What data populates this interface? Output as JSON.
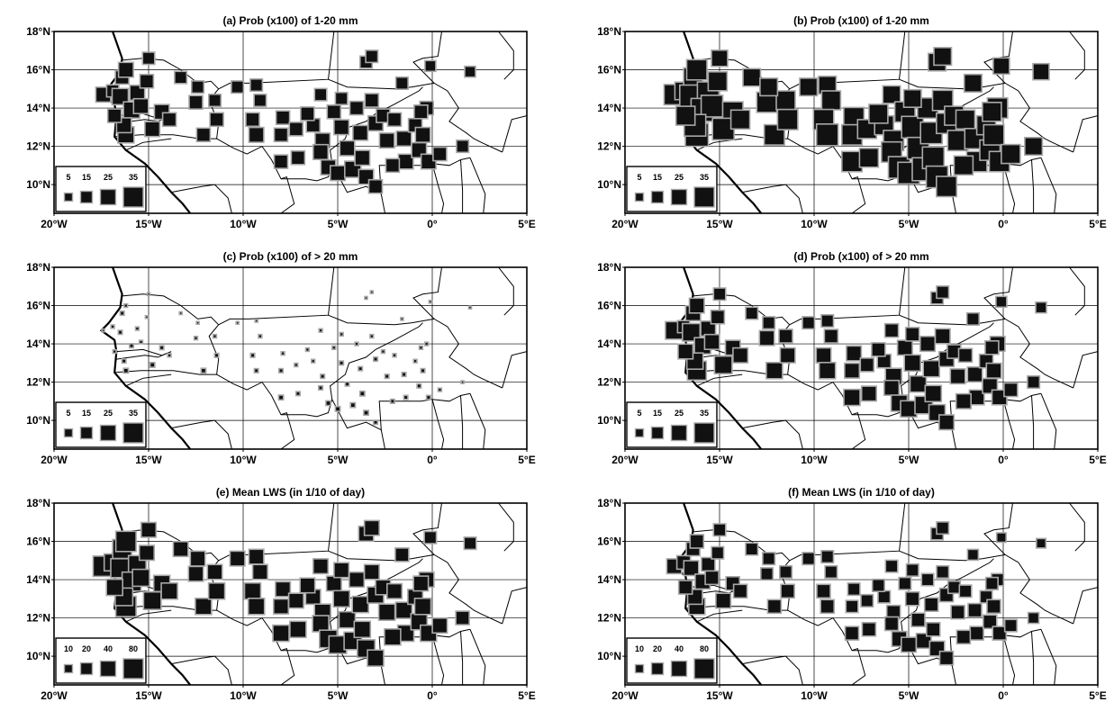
{
  "figure": {
    "panels": [
      {
        "id": "a",
        "title": "(a) Prob (x100) of 1-20 mm",
        "legend": [
          "5",
          "15",
          "25",
          "35"
        ],
        "variable": "prob_1_20mm"
      },
      {
        "id": "b",
        "title": "(b) Prob (x100) of 1-20 mm",
        "legend": [
          "5",
          "15",
          "25",
          "35"
        ],
        "variable": "prob_1_20mm_alt"
      },
      {
        "id": "c",
        "title": "(c) Prob (x100) of > 20 mm",
        "legend": [
          "5",
          "15",
          "25",
          "35"
        ],
        "variable": "prob_gt20mm"
      },
      {
        "id": "d",
        "title": "(d) Prob (x100) of > 20 mm",
        "legend": [
          "5",
          "15",
          "25",
          "35"
        ],
        "variable": "prob_gt20mm_alt"
      },
      {
        "id": "e",
        "title": "(e) Mean LWS (in 1/10 of day)",
        "legend": [
          "10",
          "20",
          "40",
          "80"
        ],
        "variable": "lws"
      },
      {
        "id": "f",
        "title": "(f) Mean LWS (in 1/10 of day)",
        "legend": [
          "10",
          "20",
          "40",
          "80"
        ],
        "variable": "lws_alt"
      }
    ],
    "lon_ticks": [
      "20°W",
      "15°W",
      "10°W",
      "5°W",
      "0°",
      "5°E"
    ],
    "lat_ticks": [
      "18°N",
      "16°N",
      "14°N",
      "12°N",
      "10°N"
    ],
    "map_extent": {
      "lon": [
        -20,
        5
      ],
      "lat": [
        8.5,
        18
      ]
    },
    "colors": {
      "marker_fill": "#111111",
      "marker_edge": "#a8a8a8",
      "lines": "#000000",
      "background": "#ffffff"
    }
  },
  "stations": [
    {
      "lon": -17.4,
      "lat": 14.7,
      "a": 22,
      "b": 30,
      "c": 4,
      "d": 26,
      "e": 30,
      "f": 22
    },
    {
      "lon": -16.9,
      "lat": 14.9,
      "a": 18,
      "b": 26,
      "c": 5,
      "d": 18,
      "e": 25,
      "f": 20
    },
    {
      "lon": -16.4,
      "lat": 15.6,
      "a": 20,
      "b": 28,
      "c": 6,
      "d": 22,
      "e": 28,
      "f": 20
    },
    {
      "lon": -16.2,
      "lat": 16.0,
      "a": 22,
      "b": 30,
      "c": 5,
      "d": 22,
      "e": 30,
      "f": 20
    },
    {
      "lon": -16.5,
      "lat": 14.6,
      "a": 24,
      "b": 34,
      "c": 6,
      "d": 26,
      "e": 28,
      "f": 22
    },
    {
      "lon": -15.6,
      "lat": 14.8,
      "a": 22,
      "b": 32,
      "c": 5,
      "d": 22,
      "e": 26,
      "f": 20
    },
    {
      "lon": -15.9,
      "lat": 13.9,
      "a": 24,
      "b": 34,
      "c": 6,
      "d": 24,
      "e": 28,
      "f": 22
    },
    {
      "lon": -15.4,
      "lat": 14.1,
      "a": 22,
      "b": 32,
      "c": 5,
      "d": 22,
      "e": 25,
      "f": 20
    },
    {
      "lon": -16.2,
      "lat": 12.6,
      "a": 24,
      "b": 34,
      "c": 7,
      "d": 28,
      "e": 30,
      "f": 24
    },
    {
      "lon": -16.3,
      "lat": 13.1,
      "a": 22,
      "b": 32,
      "c": 6,
      "d": 24,
      "e": 26,
      "f": 22
    },
    {
      "lon": -15.0,
      "lat": 16.6,
      "a": 18,
      "b": 24,
      "c": 3,
      "d": 18,
      "e": 22,
      "f": 18
    },
    {
      "lon": -15.1,
      "lat": 15.4,
      "a": 20,
      "b": 28,
      "c": 4,
      "d": 20,
      "e": 22,
      "f": 18
    },
    {
      "lon": -14.3,
      "lat": 13.8,
      "a": 22,
      "b": 30,
      "c": 6,
      "d": 22,
      "e": 24,
      "f": 20
    },
    {
      "lon": -14.8,
      "lat": 12.9,
      "a": 22,
      "b": 32,
      "c": 7,
      "d": 26,
      "e": 26,
      "f": 22
    },
    {
      "lon": -13.3,
      "lat": 15.6,
      "a": 18,
      "b": 26,
      "c": 4,
      "d": 18,
      "e": 22,
      "f": 18
    },
    {
      "lon": -12.5,
      "lat": 14.3,
      "a": 20,
      "b": 30,
      "c": 5,
      "d": 22,
      "e": 22,
      "f": 18
    },
    {
      "lon": -12.1,
      "lat": 12.6,
      "a": 20,
      "b": 30,
      "c": 7,
      "d": 24,
      "e": 24,
      "f": 20
    },
    {
      "lon": -11.5,
      "lat": 14.4,
      "a": 18,
      "b": 28,
      "c": 5,
      "d": 20,
      "e": 22,
      "f": 18
    },
    {
      "lon": -11.4,
      "lat": 13.4,
      "a": 20,
      "b": 30,
      "c": 6,
      "d": 22,
      "e": 24,
      "f": 20
    },
    {
      "lon": -10.3,
      "lat": 15.1,
      "a": 18,
      "b": 26,
      "c": 4,
      "d": 18,
      "e": 22,
      "f": 18
    },
    {
      "lon": -9.3,
      "lat": 15.2,
      "a": 18,
      "b": 26,
      "c": 4,
      "d": 18,
      "e": 22,
      "f": 18
    },
    {
      "lon": -9.1,
      "lat": 14.4,
      "a": 18,
      "b": 28,
      "c": 5,
      "d": 20,
      "e": 22,
      "f": 18
    },
    {
      "lon": -9.5,
      "lat": 13.4,
      "a": 20,
      "b": 30,
      "c": 6,
      "d": 22,
      "e": 24,
      "f": 20
    },
    {
      "lon": -9.3,
      "lat": 12.6,
      "a": 22,
      "b": 32,
      "c": 6,
      "d": 24,
      "e": 24,
      "f": 20
    },
    {
      "lon": -7.9,
      "lat": 13.5,
      "a": 20,
      "b": 30,
      "c": 5,
      "d": 22,
      "e": 22,
      "f": 18
    },
    {
      "lon": -8.0,
      "lat": 12.6,
      "a": 20,
      "b": 30,
      "c": 6,
      "d": 22,
      "e": 22,
      "f": 18
    },
    {
      "lon": -7.2,
      "lat": 12.9,
      "a": 20,
      "b": 28,
      "c": 5,
      "d": 20,
      "e": 22,
      "f": 18
    },
    {
      "lon": -8.0,
      "lat": 11.2,
      "a": 20,
      "b": 30,
      "c": 7,
      "d": 24,
      "e": 24,
      "f": 20
    },
    {
      "lon": -7.1,
      "lat": 11.4,
      "a": 20,
      "b": 28,
      "c": 6,
      "d": 22,
      "e": 24,
      "f": 20
    },
    {
      "lon": -6.3,
      "lat": 13.1,
      "a": 20,
      "b": 28,
      "c": 5,
      "d": 20,
      "e": 22,
      "f": 18
    },
    {
      "lon": -5.9,
      "lat": 14.7,
      "a": 18,
      "b": 26,
      "c": 5,
      "d": 20,
      "e": 22,
      "f": 18
    },
    {
      "lon": -5.8,
      "lat": 12.3,
      "a": 22,
      "b": 30,
      "c": 6,
      "d": 24,
      "e": 24,
      "f": 20
    },
    {
      "lon": -5.9,
      "lat": 11.7,
      "a": 22,
      "b": 30,
      "c": 6,
      "d": 22,
      "e": 24,
      "f": 20
    },
    {
      "lon": -5.5,
      "lat": 10.9,
      "a": 22,
      "b": 32,
      "c": 7,
      "d": 24,
      "e": 26,
      "f": 22
    },
    {
      "lon": -5.0,
      "lat": 10.6,
      "a": 22,
      "b": 32,
      "c": 7,
      "d": 24,
      "e": 26,
      "f": 22
    },
    {
      "lon": -5.2,
      "lat": 13.8,
      "a": 20,
      "b": 30,
      "c": 5,
      "d": 22,
      "e": 22,
      "f": 18
    },
    {
      "lon": -4.8,
      "lat": 13.0,
      "a": 22,
      "b": 32,
      "c": 6,
      "d": 24,
      "e": 24,
      "f": 20
    },
    {
      "lon": -4.5,
      "lat": 11.9,
      "a": 22,
      "b": 32,
      "c": 6,
      "d": 24,
      "e": 24,
      "f": 20
    },
    {
      "lon": -4.2,
      "lat": 10.8,
      "a": 24,
      "b": 34,
      "c": 7,
      "d": 26,
      "e": 26,
      "f": 22
    },
    {
      "lon": -4.0,
      "lat": 14.0,
      "a": 20,
      "b": 30,
      "c": 5,
      "d": 22,
      "e": 22,
      "f": 18
    },
    {
      "lon": -3.8,
      "lat": 12.7,
      "a": 22,
      "b": 32,
      "c": 6,
      "d": 24,
      "e": 24,
      "f": 20
    },
    {
      "lon": -3.7,
      "lat": 11.4,
      "a": 22,
      "b": 32,
      "c": 7,
      "d": 24,
      "e": 24,
      "f": 20
    },
    {
      "lon": -3.5,
      "lat": 10.4,
      "a": 22,
      "b": 32,
      "c": 7,
      "d": 24,
      "e": 26,
      "f": 22
    },
    {
      "lon": -3.5,
      "lat": 16.4,
      "a": 18,
      "b": 26,
      "c": 3,
      "d": 18,
      "e": 22,
      "f": 18
    },
    {
      "lon": -3.2,
      "lat": 16.7,
      "a": 18,
      "b": 26,
      "c": 3,
      "d": 18,
      "e": 22,
      "f": 18
    },
    {
      "lon": -3.2,
      "lat": 14.4,
      "a": 20,
      "b": 30,
      "c": 5,
      "d": 22,
      "e": 22,
      "f": 18
    },
    {
      "lon": -3.0,
      "lat": 13.2,
      "a": 22,
      "b": 30,
      "c": 6,
      "d": 22,
      "e": 24,
      "f": 20
    },
    {
      "lon": -3.0,
      "lat": 9.9,
      "a": 20,
      "b": 30,
      "c": 6,
      "d": 22,
      "e": 24,
      "f": 20
    },
    {
      "lon": -2.6,
      "lat": 13.6,
      "a": 20,
      "b": 28,
      "c": 5,
      "d": 20,
      "e": 22,
      "f": 18
    },
    {
      "lon": -2.4,
      "lat": 12.3,
      "a": 22,
      "b": 30,
      "c": 6,
      "d": 22,
      "e": 24,
      "f": 20
    },
    {
      "lon": -2.0,
      "lat": 13.4,
      "a": 20,
      "b": 28,
      "c": 5,
      "d": 20,
      "e": 22,
      "f": 18
    },
    {
      "lon": -1.6,
      "lat": 15.3,
      "a": 18,
      "b": 26,
      "c": 4,
      "d": 18,
      "e": 20,
      "f": 16
    },
    {
      "lon": -1.5,
      "lat": 12.4,
      "a": 22,
      "b": 30,
      "c": 6,
      "d": 22,
      "e": 24,
      "f": 20
    },
    {
      "lon": -1.4,
      "lat": 11.2,
      "a": 22,
      "b": 30,
      "c": 6,
      "d": 22,
      "e": 24,
      "f": 20
    },
    {
      "lon": -0.9,
      "lat": 13.1,
      "a": 20,
      "b": 28,
      "c": 5,
      "d": 20,
      "e": 22,
      "f": 18
    },
    {
      "lon": -0.7,
      "lat": 11.8,
      "a": 22,
      "b": 30,
      "c": 6,
      "d": 22,
      "e": 24,
      "f": 20
    },
    {
      "lon": -0.5,
      "lat": 12.6,
      "a": 22,
      "b": 30,
      "c": 6,
      "d": 22,
      "e": 24,
      "f": 20
    },
    {
      "lon": -0.3,
      "lat": 14.0,
      "a": 20,
      "b": 30,
      "c": 5,
      "d": 22,
      "e": 22,
      "f": 18
    },
    {
      "lon": -0.1,
      "lat": 16.2,
      "a": 16,
      "b": 24,
      "c": 3,
      "d": 16,
      "e": 18,
      "f": 14
    },
    {
      "lon": -0.2,
      "lat": 11.2,
      "a": 22,
      "b": 30,
      "c": 6,
      "d": 22,
      "e": 24,
      "f": 20
    },
    {
      "lon": 0.4,
      "lat": 11.6,
      "a": 20,
      "b": 28,
      "c": 5,
      "d": 20,
      "e": 22,
      "f": 18
    },
    {
      "lon": 1.6,
      "lat": 12.0,
      "a": 18,
      "b": 26,
      "c": 4,
      "d": 18,
      "e": 20,
      "f": 16
    },
    {
      "lon": 2.0,
      "lat": 15.9,
      "a": 16,
      "b": 24,
      "c": 3,
      "d": 16,
      "e": 18,
      "f": 14
    },
    {
      "lon": -12.4,
      "lat": 15.1,
      "a": 18,
      "b": 26,
      "c": 4,
      "d": 18,
      "e": 22,
      "f": 18
    },
    {
      "lon": -16.8,
      "lat": 13.6,
      "a": 20,
      "b": 28,
      "c": 5,
      "d": 22,
      "e": 24,
      "f": 20
    },
    {
      "lon": -13.9,
      "lat": 13.4,
      "a": 20,
      "b": 28,
      "c": 5,
      "d": 22,
      "e": 24,
      "f": 20
    },
    {
      "lon": -6.6,
      "lat": 13.7,
      "a": 20,
      "b": 28,
      "c": 5,
      "d": 20,
      "e": 22,
      "f": 18
    },
    {
      "lon": -4.8,
      "lat": 14.5,
      "a": 18,
      "b": 26,
      "c": 5,
      "d": 20,
      "e": 22,
      "f": 18
    },
    {
      "lon": -2.1,
      "lat": 11.0,
      "a": 20,
      "b": 28,
      "c": 6,
      "d": 22,
      "e": 24,
      "f": 20
    },
    {
      "lon": -0.6,
      "lat": 13.8,
      "a": 20,
      "b": 28,
      "c": 5,
      "d": 20,
      "e": 22,
      "f": 18
    }
  ]
}
